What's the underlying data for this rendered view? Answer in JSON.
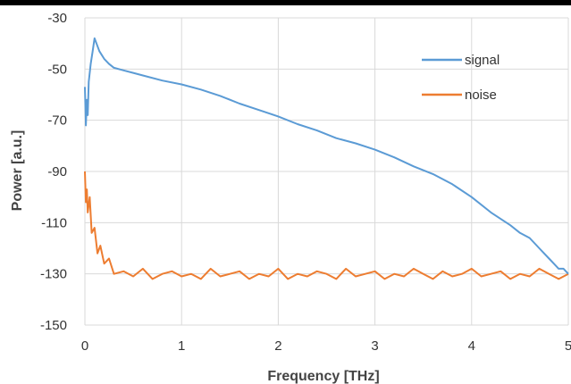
{
  "chart_data": {
    "type": "line",
    "title": "",
    "xlabel": "Frequency [THz]",
    "ylabel": "Power [a.u.]",
    "xlim": [
      0,
      5
    ],
    "ylim": [
      -150,
      -30
    ],
    "x_ticks": [
      0,
      1,
      2,
      3,
      4,
      5
    ],
    "y_ticks": [
      -30,
      -50,
      -70,
      -90,
      -110,
      -130,
      -150
    ],
    "grid": true,
    "legend_position": "top-right",
    "series": [
      {
        "name": "signal",
        "color": "#5b9bd5",
        "x": [
          0.0,
          0.01,
          0.02,
          0.03,
          0.04,
          0.06,
          0.08,
          0.1,
          0.12,
          0.15,
          0.2,
          0.25,
          0.3,
          0.4,
          0.5,
          0.6,
          0.8,
          1.0,
          1.2,
          1.4,
          1.6,
          1.8,
          2.0,
          2.2,
          2.4,
          2.6,
          2.8,
          3.0,
          3.2,
          3.4,
          3.6,
          3.8,
          4.0,
          4.2,
          4.4,
          4.5,
          4.6,
          4.7,
          4.8,
          4.85,
          4.9,
          4.95,
          5.0
        ],
        "y": [
          -57,
          -72,
          -62,
          -68,
          -55,
          -48,
          -43,
          -38,
          -40,
          -43,
          -46,
          -48,
          -49.5,
          -50.5,
          -51.5,
          -52.5,
          -54.5,
          -56,
          -58,
          -60.5,
          -63.5,
          -66,
          -68.5,
          -71.5,
          -74,
          -77,
          -79,
          -81.5,
          -84.5,
          -88,
          -91,
          -95,
          -100,
          -106,
          -111,
          -114,
          -116,
          -120,
          -124,
          -126,
          -128,
          -128,
          -130
        ]
      },
      {
        "name": "noise",
        "color": "#ed7d31",
        "x": [
          0.0,
          0.01,
          0.02,
          0.03,
          0.05,
          0.07,
          0.1,
          0.13,
          0.16,
          0.2,
          0.25,
          0.3,
          0.4,
          0.5,
          0.6,
          0.7,
          0.8,
          0.9,
          1.0,
          1.1,
          1.2,
          1.3,
          1.4,
          1.5,
          1.6,
          1.7,
          1.8,
          1.9,
          2.0,
          2.1,
          2.2,
          2.3,
          2.4,
          2.5,
          2.6,
          2.7,
          2.8,
          2.9,
          3.0,
          3.1,
          3.2,
          3.3,
          3.4,
          3.5,
          3.6,
          3.7,
          3.8,
          3.9,
          4.0,
          4.1,
          4.2,
          4.3,
          4.4,
          4.5,
          4.6,
          4.7,
          4.8,
          4.9,
          5.0
        ],
        "y": [
          -90,
          -102,
          -97,
          -106,
          -100,
          -114,
          -112,
          -122,
          -119,
          -126,
          -124,
          -130,
          -129,
          -131,
          -128,
          -132,
          -130,
          -129,
          -131,
          -130,
          -132,
          -128,
          -131,
          -130,
          -129,
          -132,
          -130,
          -131,
          -128,
          -132,
          -130,
          -131,
          -129,
          -130,
          -132,
          -128,
          -131,
          -130,
          -129,
          -132,
          -130,
          -131,
          -128,
          -130,
          -132,
          -129,
          -131,
          -130,
          -128,
          -131,
          -130,
          -129,
          -132,
          -130,
          -131,
          -128,
          -130,
          -132,
          -130
        ]
      }
    ]
  }
}
